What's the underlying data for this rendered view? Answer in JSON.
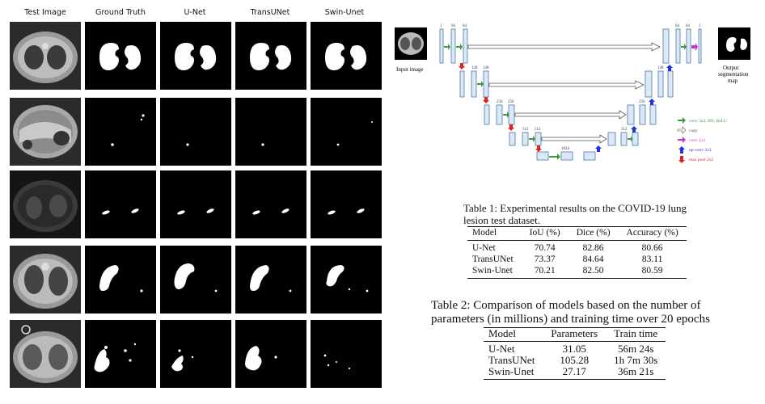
{
  "figure": {
    "columns": [
      "Test Image",
      "Ground Truth",
      "U-Net",
      "TransUNet",
      "Swin-Unet"
    ]
  },
  "diagram": {
    "input_label": "Input image",
    "output_label_1": "Output",
    "output_label_2": "segmentation",
    "output_label_3": "map",
    "channel_labels": [
      "1",
      "64",
      "64",
      "128",
      "128",
      "256",
      "256",
      "512",
      "512",
      "1024",
      "512",
      "256",
      "128",
      "64",
      "64",
      "1"
    ],
    "legend": [
      {
        "label": "conv 3x3, BN, ReLU",
        "color": "#3f9a3f"
      },
      {
        "label": "copy",
        "color": "#555555"
      },
      {
        "label": "conv 1x1",
        "color": "#cc33cc"
      },
      {
        "label": "up-conv 2x2",
        "color": "#2233dd"
      },
      {
        "label": "max pool 2x2",
        "color": "#dd2222"
      }
    ]
  },
  "table1": {
    "caption_line1": "Table 1: Experimental results on the COVID-19 lung",
    "caption_line2": "lesion test dataset.",
    "headers": [
      "Model",
      "IoU (%)",
      "Dice (%)",
      "Accuracy (%)"
    ],
    "rows": [
      [
        "U-Net",
        "70.74",
        "82.86",
        "80.66"
      ],
      [
        "TransUNet",
        "73.37",
        "84.64",
        "83.11"
      ],
      [
        "Swin-Unet",
        "70.21",
        "82.50",
        "80.59"
      ]
    ]
  },
  "table2": {
    "caption_line1": "Table 2: Comparison of models based on the number of",
    "caption_line2": "parameters (in millions) and training time over 20 epochs",
    "headers": [
      "Model",
      "Parameters",
      "Train time"
    ],
    "rows": [
      [
        "U-Net",
        "31.05",
        "56m 24s"
      ],
      [
        "TransUNet",
        "105.28",
        "1h 7m 30s"
      ],
      [
        "Swin-Unet",
        "27.17",
        "36m 21s"
      ]
    ]
  }
}
